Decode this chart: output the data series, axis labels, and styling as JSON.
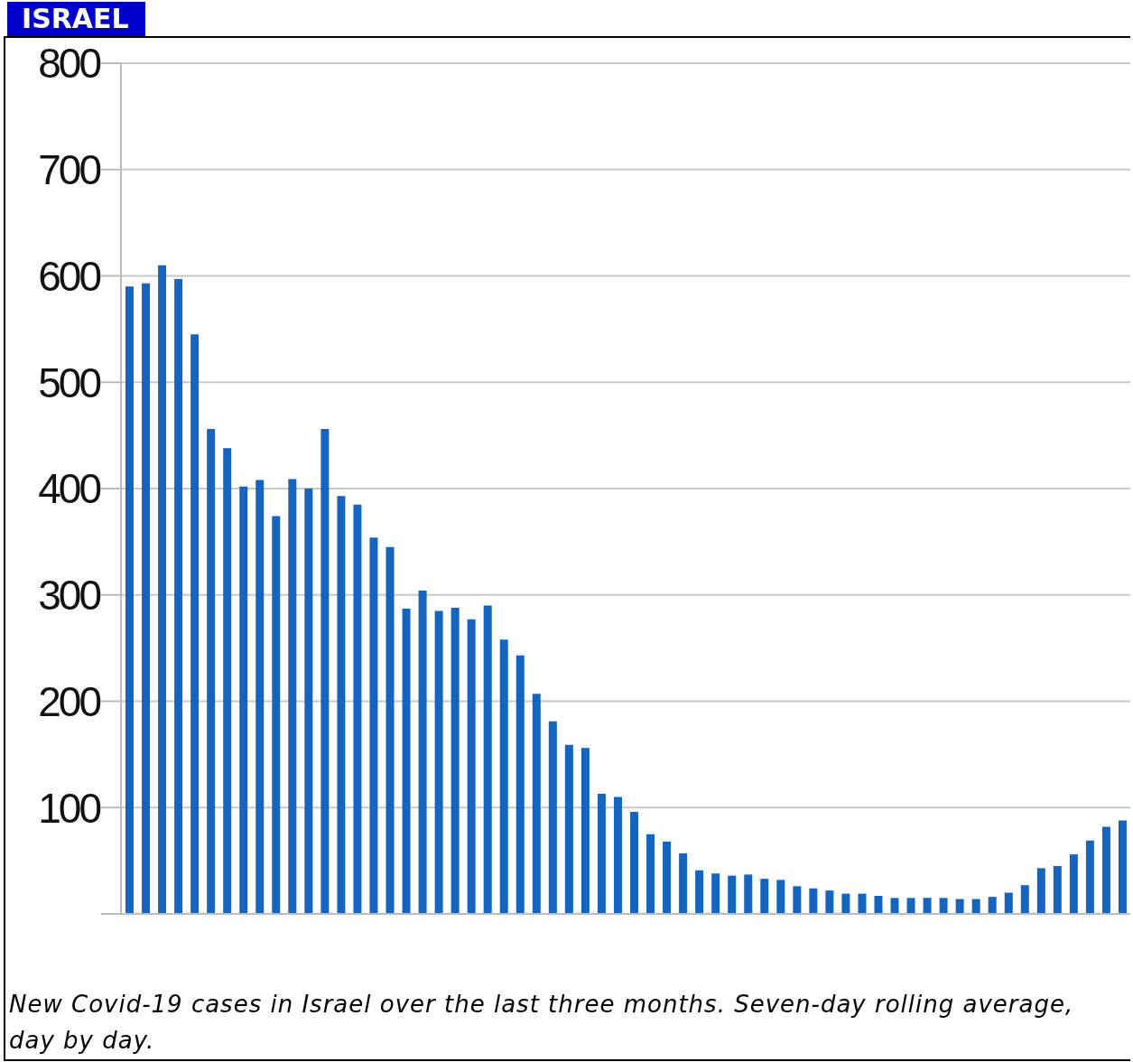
{
  "chart_data": {
    "type": "bar",
    "title": "ISRAEL",
    "annotations": [
      "New Covid-19 cases in Israel over the last three months. Seven-day rolling average, day by day."
    ],
    "categories": [
      null,
      null,
      null,
      null,
      null,
      null,
      null,
      null,
      null,
      null,
      null,
      null,
      null,
      null,
      null,
      null,
      null,
      null,
      null,
      null,
      null,
      null,
      null,
      null,
      null,
      null,
      null,
      null,
      null,
      null,
      null,
      null,
      null,
      null,
      null,
      null,
      null,
      null,
      null,
      null,
      null,
      null,
      null,
      null,
      null,
      null,
      null,
      null,
      null,
      null,
      null,
      null,
      null,
      null,
      null,
      null,
      null,
      null,
      null,
      null,
      null,
      null
    ],
    "values": [
      590,
      593,
      610,
      597,
      545,
      456,
      438,
      402,
      408,
      374,
      409,
      400,
      456,
      393,
      385,
      354,
      345,
      287,
      304,
      285,
      288,
      277,
      290,
      258,
      243,
      207,
      181,
      159,
      156,
      113,
      110,
      96,
      75,
      68,
      57,
      41,
      38,
      36,
      37,
      33,
      32,
      26,
      24,
      22,
      19,
      19,
      17,
      15,
      15,
      15,
      15,
      14,
      14,
      16,
      20,
      27,
      43,
      45,
      56,
      69,
      82,
      88
    ],
    "color": "#1565c0",
    "ylim": [
      0,
      800
    ],
    "yticks": [
      {
        "value": 0,
        "label": null
      },
      100,
      200,
      300,
      400,
      500,
      600,
      700,
      800
    ],
    "grid": "y",
    "tick_labels": "y"
  }
}
